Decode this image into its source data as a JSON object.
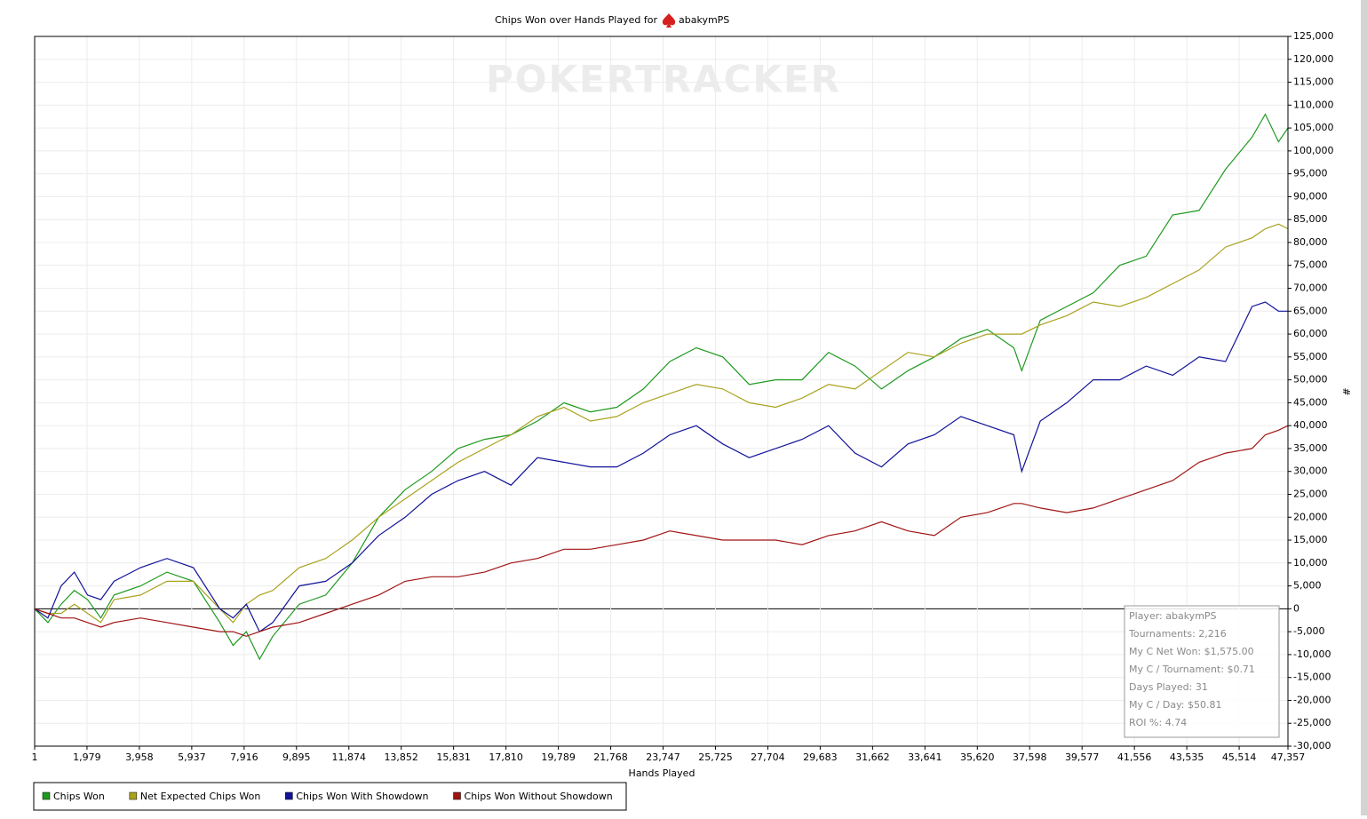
{
  "chart_data": {
    "type": "line",
    "title": "Chips Won over Hands Played for",
    "title_player": "abakymPS",
    "watermark": "POKERTRACKER",
    "x_label": "Hands Played",
    "y_label": "#",
    "grid": true,
    "xlim": [
      1,
      47357
    ],
    "ylim": [
      -30000,
      125000
    ],
    "xticks": [
      1,
      {
        "value": 1979,
        "label": "1,979"
      },
      {
        "value": 3958,
        "label": "3,958"
      },
      {
        "value": 5937,
        "label": "5,937"
      },
      {
        "value": 7916,
        "label": "7,916"
      },
      {
        "value": 9895,
        "label": "9,895"
      },
      {
        "value": 11874,
        "label": "11,874"
      },
      {
        "value": 13852,
        "label": "13,852"
      },
      {
        "value": 15831,
        "label": "15,831"
      },
      {
        "value": 17810,
        "label": "17,810"
      },
      {
        "value": 19789,
        "label": "19,789"
      },
      {
        "value": 21768,
        "label": "21,768"
      },
      {
        "value": 23747,
        "label": "23,747"
      },
      {
        "value": 25725,
        "label": "25,725"
      },
      {
        "value": 27704,
        "label": "27,704"
      },
      {
        "value": 29683,
        "label": "29,683"
      },
      {
        "value": 31662,
        "label": "31,662"
      },
      {
        "value": 33641,
        "label": "33,641"
      },
      {
        "value": 35620,
        "label": "35,620"
      },
      {
        "value": 37598,
        "label": "37,598"
      },
      {
        "value": 39577,
        "label": "39,577"
      },
      {
        "value": 41556,
        "label": "41,556"
      },
      {
        "value": 43535,
        "label": "43,535"
      },
      {
        "value": 45514,
        "label": "45,514"
      },
      {
        "value": 47357,
        "label": "47,357"
      }
    ],
    "yticks": [
      {
        "value": -30000,
        "label": "-30,000"
      },
      {
        "value": -25000,
        "label": "-25,000"
      },
      {
        "value": -20000,
        "label": "-20,000"
      },
      {
        "value": -15000,
        "label": "-15,000"
      },
      {
        "value": -10000,
        "label": "-10,000"
      },
      {
        "value": -5000,
        "label": "-5,000"
      },
      0,
      {
        "value": 5000,
        "label": "5,000"
      },
      {
        "value": 10000,
        "label": "10,000"
      },
      {
        "value": 15000,
        "label": "15,000"
      },
      {
        "value": 20000,
        "label": "20,000"
      },
      {
        "value": 25000,
        "label": "25,000"
      },
      {
        "value": 30000,
        "label": "30,000"
      },
      {
        "value": 35000,
        "label": "35,000"
      },
      {
        "value": 40000,
        "label": "40,000"
      },
      {
        "value": 45000,
        "label": "45,000"
      },
      {
        "value": 50000,
        "label": "50,000"
      },
      {
        "value": 55000,
        "label": "55,000"
      },
      {
        "value": 60000,
        "label": "60,000"
      },
      {
        "value": 65000,
        "label": "65,000"
      },
      {
        "value": 70000,
        "label": "70,000"
      },
      {
        "value": 75000,
        "label": "75,000"
      },
      {
        "value": 80000,
        "label": "80,000"
      },
      {
        "value": 85000,
        "label": "85,000"
      },
      {
        "value": 90000,
        "label": "90,000"
      },
      {
        "value": 95000,
        "label": "95,000"
      },
      {
        "value": 100000,
        "label": "100,000"
      },
      {
        "value": 105000,
        "label": "105,000"
      },
      {
        "value": 110000,
        "label": "110,000"
      },
      {
        "value": 115000,
        "label": "115,000"
      },
      {
        "value": 120000,
        "label": "120,000"
      },
      {
        "value": 125000,
        "label": "125,000"
      }
    ],
    "x": [
      1,
      500,
      1000,
      1500,
      2000,
      2500,
      3000,
      4000,
      5000,
      6000,
      7000,
      7500,
      8000,
      8500,
      9000,
      10000,
      11000,
      12000,
      13000,
      14000,
      15000,
      16000,
      17000,
      18000,
      19000,
      20000,
      21000,
      22000,
      23000,
      24000,
      25000,
      26000,
      27000,
      28000,
      29000,
      30000,
      31000,
      32000,
      33000,
      34000,
      35000,
      36000,
      37000,
      37300,
      38000,
      39000,
      40000,
      41000,
      42000,
      43000,
      44000,
      45000,
      46000,
      46500,
      47000,
      47357
    ],
    "series": [
      {
        "name": "Chips Won",
        "color": "#1f9a1f",
        "values": [
          0,
          -3000,
          1000,
          4000,
          2000,
          -2000,
          3000,
          5000,
          8000,
          6000,
          -3000,
          -8000,
          -5000,
          -11000,
          -6000,
          1000,
          3000,
          10000,
          20000,
          26000,
          30000,
          35000,
          37000,
          38000,
          41000,
          45000,
          43000,
          44000,
          48000,
          54000,
          57000,
          55000,
          49000,
          50000,
          50000,
          56000,
          53000,
          48000,
          52000,
          55000,
          59000,
          61000,
          57000,
          52000,
          63000,
          66000,
          69000,
          75000,
          77000,
          86000,
          87000,
          96000,
          103000,
          108000,
          102000,
          105000
        ]
      },
      {
        "name": "Net Expected Chips Won",
        "color": "#aaa21e",
        "values": [
          0,
          -1000,
          -1000,
          1000,
          -1000,
          -3000,
          2000,
          3000,
          6000,
          6000,
          0,
          -3000,
          1000,
          3000,
          4000,
          9000,
          11000,
          15000,
          20000,
          24000,
          28000,
          32000,
          35000,
          38000,
          42000,
          44000,
          41000,
          42000,
          45000,
          47000,
          49000,
          48000,
          45000,
          44000,
          46000,
          49000,
          48000,
          52000,
          56000,
          55000,
          58000,
          60000,
          60000,
          60000,
          62000,
          64000,
          67000,
          66000,
          68000,
          71000,
          74000,
          79000,
          81000,
          83000,
          84000,
          83000
        ]
      },
      {
        "name": "Chips Won With Showdown",
        "color": "#12129a",
        "values": [
          0,
          -2000,
          5000,
          8000,
          3000,
          2000,
          6000,
          9000,
          11000,
          9000,
          0,
          -2000,
          1000,
          -5000,
          -3000,
          5000,
          6000,
          10000,
          16000,
          20000,
          25000,
          28000,
          30000,
          27000,
          33000,
          32000,
          31000,
          31000,
          34000,
          38000,
          40000,
          36000,
          33000,
          35000,
          37000,
          40000,
          34000,
          31000,
          36000,
          38000,
          42000,
          40000,
          38000,
          30000,
          41000,
          45000,
          50000,
          50000,
          53000,
          51000,
          55000,
          54000,
          66000,
          67000,
          65000,
          65000
        ]
      },
      {
        "name": "Chips Won Without Showdown",
        "color": "#a01414",
        "values": [
          0,
          -1000,
          -2000,
          -2000,
          -3000,
          -4000,
          -3000,
          -2000,
          -3000,
          -4000,
          -5000,
          -5000,
          -6000,
          -5000,
          -4000,
          -3000,
          -1000,
          1000,
          3000,
          6000,
          7000,
          7000,
          8000,
          10000,
          11000,
          13000,
          13000,
          14000,
          15000,
          17000,
          16000,
          15000,
          15000,
          15000,
          14000,
          16000,
          17000,
          19000,
          17000,
          16000,
          20000,
          21000,
          23000,
          23000,
          22000,
          21000,
          22000,
          24000,
          26000,
          28000,
          32000,
          34000,
          35000,
          38000,
          39000,
          40000
        ]
      }
    ],
    "stats": [
      "Player: abakymPS",
      "Tournaments: 2,216",
      "My C Net Won: $1,575.00",
      "My C / Tournament: $0.71",
      "Days Played: 31",
      "My C / Day: $50.81",
      "ROI %: 4.74"
    ]
  }
}
